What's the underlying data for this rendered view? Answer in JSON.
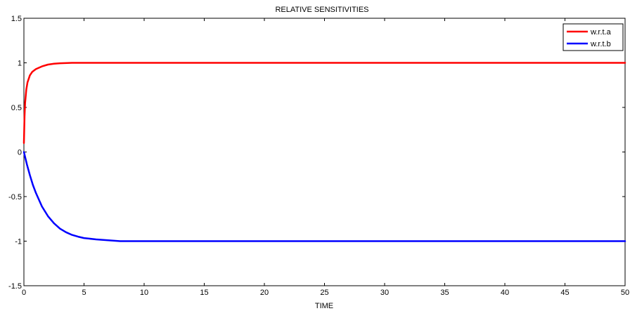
{
  "chart_data": {
    "type": "line",
    "title": "RELATIVE SENSITIVITIES",
    "xlabel": "TIME",
    "ylabel": "",
    "xlim": [
      0,
      50
    ],
    "ylim": [
      -1.5,
      1.5
    ],
    "xticks": [
      0,
      5,
      10,
      15,
      20,
      25,
      30,
      35,
      40,
      45,
      50
    ],
    "yticks": [
      -1.5,
      -1,
      -0.5,
      0,
      0.5,
      1,
      1.5
    ],
    "grid": false,
    "legend_position": "top-right",
    "series": [
      {
        "name": "w.r.t.a",
        "color": "#ff0000",
        "x": [
          0,
          0.05,
          0.1,
          0.2,
          0.3,
          0.5,
          0.7,
          1,
          1.5,
          2,
          2.5,
          3,
          4,
          5,
          7,
          10,
          20,
          30,
          40,
          50
        ],
        "y": [
          0.1,
          0.4,
          0.55,
          0.7,
          0.78,
          0.86,
          0.9,
          0.93,
          0.96,
          0.98,
          0.99,
          0.995,
          1,
          1,
          1,
          1,
          1,
          1,
          1,
          1
        ]
      },
      {
        "name": "w.r.t.b",
        "color": "#0000ff",
        "x": [
          0,
          0.25,
          0.5,
          0.75,
          1,
          1.5,
          2,
          2.5,
          3,
          3.5,
          4,
          4.5,
          5,
          6,
          7,
          8,
          10,
          20,
          30,
          40,
          50
        ],
        "y": [
          0,
          -0.14,
          -0.26,
          -0.37,
          -0.46,
          -0.61,
          -0.72,
          -0.8,
          -0.86,
          -0.9,
          -0.93,
          -0.95,
          -0.965,
          -0.98,
          -0.99,
          -1,
          -1,
          -1,
          -1,
          -1,
          -1
        ]
      }
    ]
  }
}
